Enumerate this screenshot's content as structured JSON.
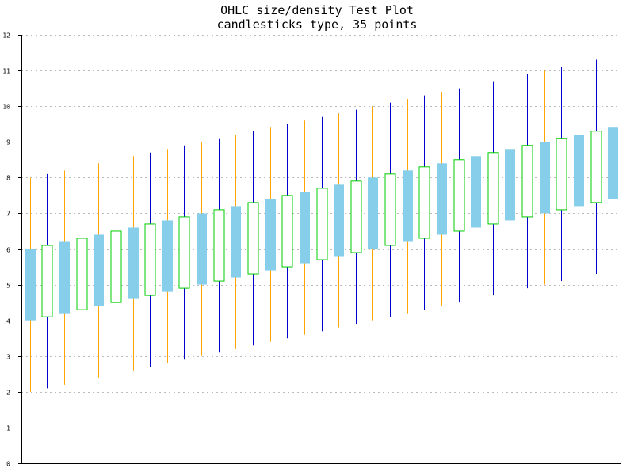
{
  "chart_data": {
    "type": "ohlc-candlestick",
    "title": "OHLC size/density Test Plot",
    "subtitle": "candlesticks type, 35 points",
    "xlabel": "",
    "ylabel": "",
    "ylim": [
      0,
      12
    ],
    "y_ticks": [
      0,
      1,
      2,
      3,
      4,
      5,
      6,
      7,
      8,
      9,
      10,
      11,
      12
    ],
    "grid": true,
    "colors": {
      "down_body": "#87ceeb",
      "up_body_outline": "#00cc00",
      "wick_down": "#ffa500",
      "wick_up": "#0000cc",
      "grid": "#bbbbbb",
      "axis": "#000000"
    },
    "candles": [
      {
        "open": 6.0,
        "high": 8.0,
        "low": 2.0,
        "close": 4.0
      },
      {
        "open": 4.1,
        "high": 8.1,
        "low": 2.1,
        "close": 6.1
      },
      {
        "open": 6.2,
        "high": 8.2,
        "low": 2.2,
        "close": 4.2
      },
      {
        "open": 4.3,
        "high": 8.3,
        "low": 2.3,
        "close": 6.3
      },
      {
        "open": 6.4,
        "high": 8.4,
        "low": 2.4,
        "close": 4.4
      },
      {
        "open": 4.5,
        "high": 8.5,
        "low": 2.5,
        "close": 6.5
      },
      {
        "open": 6.6,
        "high": 8.6,
        "low": 2.6,
        "close": 4.6
      },
      {
        "open": 4.7,
        "high": 8.7,
        "low": 2.7,
        "close": 6.7
      },
      {
        "open": 6.8,
        "high": 8.8,
        "low": 2.8,
        "close": 4.8
      },
      {
        "open": 4.9,
        "high": 8.9,
        "low": 2.9,
        "close": 6.9
      },
      {
        "open": 7.0,
        "high": 9.0,
        "low": 3.0,
        "close": 5.0
      },
      {
        "open": 5.1,
        "high": 9.1,
        "low": 3.1,
        "close": 7.1
      },
      {
        "open": 7.2,
        "high": 9.2,
        "low": 3.2,
        "close": 5.2
      },
      {
        "open": 5.3,
        "high": 9.3,
        "low": 3.3,
        "close": 7.3
      },
      {
        "open": 7.4,
        "high": 9.4,
        "low": 3.4,
        "close": 5.4
      },
      {
        "open": 5.5,
        "high": 9.5,
        "low": 3.5,
        "close": 7.5
      },
      {
        "open": 7.6,
        "high": 9.6,
        "low": 3.6,
        "close": 5.6
      },
      {
        "open": 5.7,
        "high": 9.7,
        "low": 3.7,
        "close": 7.7
      },
      {
        "open": 7.8,
        "high": 9.8,
        "low": 3.8,
        "close": 5.8
      },
      {
        "open": 5.9,
        "high": 9.9,
        "low": 3.9,
        "close": 7.9
      },
      {
        "open": 8.0,
        "high": 10.0,
        "low": 4.0,
        "close": 6.0
      },
      {
        "open": 6.1,
        "high": 10.1,
        "low": 4.1,
        "close": 8.1
      },
      {
        "open": 8.2,
        "high": 10.2,
        "low": 4.2,
        "close": 6.2
      },
      {
        "open": 6.3,
        "high": 10.3,
        "low": 4.3,
        "close": 8.3
      },
      {
        "open": 8.4,
        "high": 10.4,
        "low": 4.4,
        "close": 6.4
      },
      {
        "open": 6.5,
        "high": 10.5,
        "low": 4.5,
        "close": 8.5
      },
      {
        "open": 8.6,
        "high": 10.6,
        "low": 4.6,
        "close": 6.6
      },
      {
        "open": 6.7,
        "high": 10.7,
        "low": 4.7,
        "close": 8.7
      },
      {
        "open": 8.8,
        "high": 10.8,
        "low": 4.8,
        "close": 6.8
      },
      {
        "open": 6.9,
        "high": 10.9,
        "low": 4.9,
        "close": 8.9
      },
      {
        "open": 9.0,
        "high": 11.0,
        "low": 5.0,
        "close": 7.0
      },
      {
        "open": 7.1,
        "high": 11.1,
        "low": 5.1,
        "close": 9.1
      },
      {
        "open": 9.2,
        "high": 11.2,
        "low": 5.2,
        "close": 7.2
      },
      {
        "open": 7.3,
        "high": 11.3,
        "low": 5.3,
        "close": 9.3
      },
      {
        "open": 9.4,
        "high": 11.4,
        "low": 5.4,
        "close": 7.4
      }
    ]
  }
}
